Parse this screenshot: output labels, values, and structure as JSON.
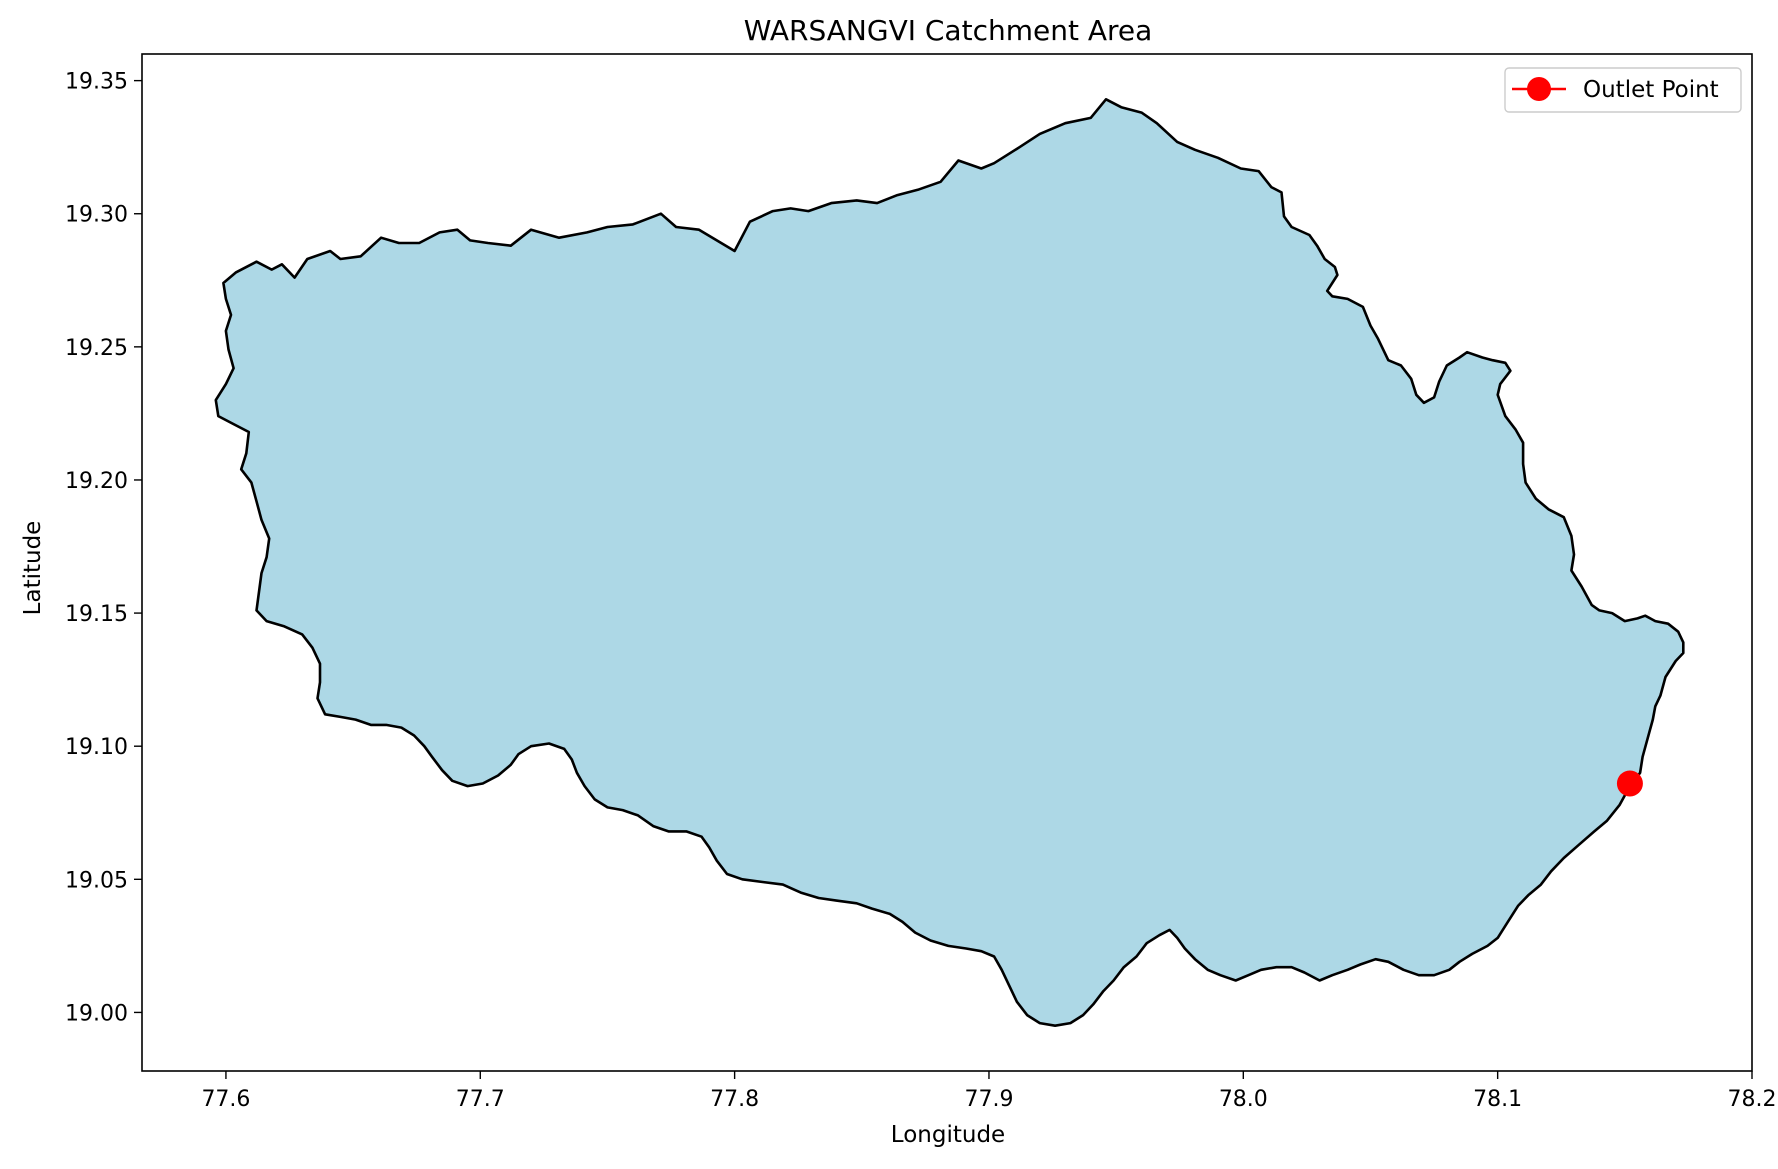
{
  "chart_data": {
    "type": "map",
    "title": "WARSANGVI Catchment Area",
    "xlabel": "Longitude",
    "ylabel": "Latitude",
    "xlim": [
      77.567,
      78.2
    ],
    "ylim": [
      18.978,
      19.36
    ],
    "x_ticks": [
      77.6,
      77.7,
      77.8,
      77.9,
      78.0,
      78.1,
      78.2
    ],
    "x_tick_labels": [
      "77.6",
      "77.7",
      "77.8",
      "77.9",
      "78.0",
      "78.1",
      "78.2"
    ],
    "y_ticks": [
      19.0,
      19.05,
      19.1,
      19.15,
      19.2,
      19.25,
      19.3,
      19.35
    ],
    "y_tick_labels": [
      "19.00",
      "19.05",
      "19.10",
      "19.15",
      "19.20",
      "19.25",
      "19.30",
      "19.35"
    ],
    "grid": false,
    "legend": {
      "placement": "top-right",
      "entries": [
        {
          "name": "Outlet Point",
          "marker": "circle",
          "color": "#ff0000"
        }
      ]
    },
    "catchment": {
      "fill_color": "#add8e6",
      "edge_color": "#000000",
      "boundary": [
        [
          77.599,
          19.274
        ],
        [
          77.604,
          19.278
        ],
        [
          77.612,
          19.282
        ],
        [
          77.618,
          19.279
        ],
        [
          77.622,
          19.281
        ],
        [
          77.627,
          19.276
        ],
        [
          77.632,
          19.283
        ],
        [
          77.641,
          19.286
        ],
        [
          77.645,
          19.283
        ],
        [
          77.653,
          19.284
        ],
        [
          77.661,
          19.291
        ],
        [
          77.668,
          19.289
        ],
        [
          77.676,
          19.289
        ],
        [
          77.684,
          19.293
        ],
        [
          77.691,
          19.294
        ],
        [
          77.696,
          19.29
        ],
        [
          77.703,
          19.289
        ],
        [
          77.712,
          19.288
        ],
        [
          77.72,
          19.294
        ],
        [
          77.731,
          19.291
        ],
        [
          77.742,
          19.293
        ],
        [
          77.75,
          19.295
        ],
        [
          77.76,
          19.296
        ],
        [
          77.771,
          19.3
        ],
        [
          77.777,
          19.295
        ],
        [
          77.786,
          19.294
        ],
        [
          77.793,
          19.29
        ],
        [
          77.8,
          19.286
        ],
        [
          77.806,
          19.297
        ],
        [
          77.815,
          19.301
        ],
        [
          77.822,
          19.302
        ],
        [
          77.829,
          19.301
        ],
        [
          77.838,
          19.304
        ],
        [
          77.848,
          19.305
        ],
        [
          77.856,
          19.304
        ],
        [
          77.864,
          19.307
        ],
        [
          77.872,
          19.309
        ],
        [
          77.881,
          19.312
        ],
        [
          77.888,
          19.32
        ],
        [
          77.897,
          19.317
        ],
        [
          77.902,
          19.319
        ],
        [
          77.912,
          19.325
        ],
        [
          77.92,
          19.33
        ],
        [
          77.93,
          19.334
        ],
        [
          77.94,
          19.336
        ],
        [
          77.946,
          19.343
        ],
        [
          77.952,
          19.34
        ],
        [
          77.96,
          19.338
        ],
        [
          77.966,
          19.334
        ],
        [
          77.974,
          19.327
        ],
        [
          77.981,
          19.324
        ],
        [
          77.99,
          19.321
        ],
        [
          77.999,
          19.317
        ],
        [
          78.006,
          19.316
        ],
        [
          78.011,
          19.31
        ],
        [
          78.015,
          19.308
        ],
        [
          78.016,
          19.299
        ],
        [
          78.019,
          19.295
        ],
        [
          78.026,
          19.292
        ],
        [
          78.029,
          19.288
        ],
        [
          78.032,
          19.283
        ],
        [
          78.036,
          19.28
        ],
        [
          78.037,
          19.277
        ],
        [
          78.033,
          19.271
        ],
        [
          78.035,
          19.269
        ],
        [
          78.041,
          19.268
        ],
        [
          78.047,
          19.265
        ],
        [
          78.05,
          19.258
        ],
        [
          78.053,
          19.253
        ],
        [
          78.057,
          19.245
        ],
        [
          78.062,
          19.243
        ],
        [
          78.066,
          19.238
        ],
        [
          78.068,
          19.232
        ],
        [
          78.071,
          19.229
        ],
        [
          78.075,
          19.231
        ],
        [
          78.077,
          19.237
        ],
        [
          78.08,
          19.243
        ],
        [
          78.085,
          19.246
        ],
        [
          78.088,
          19.248
        ],
        [
          78.094,
          19.246
        ],
        [
          78.098,
          19.245
        ],
        [
          78.103,
          19.244
        ],
        [
          78.105,
          19.241
        ],
        [
          78.101,
          19.236
        ],
        [
          78.1,
          19.232
        ],
        [
          78.103,
          19.224
        ],
        [
          78.107,
          19.219
        ],
        [
          78.11,
          19.214
        ],
        [
          78.11,
          19.206
        ],
        [
          78.111,
          19.199
        ],
        [
          78.115,
          19.193
        ],
        [
          78.12,
          19.189
        ],
        [
          78.126,
          19.186
        ],
        [
          78.129,
          19.179
        ],
        [
          78.13,
          19.172
        ],
        [
          78.129,
          19.166
        ],
        [
          78.133,
          19.16
        ],
        [
          78.137,
          19.153
        ],
        [
          78.14,
          19.151
        ],
        [
          78.145,
          19.15
        ],
        [
          78.15,
          19.147
        ],
        [
          78.155,
          19.148
        ],
        [
          78.158,
          19.149
        ],
        [
          78.162,
          19.147
        ],
        [
          78.167,
          19.146
        ],
        [
          78.171,
          19.143
        ],
        [
          78.173,
          19.139
        ],
        [
          78.173,
          19.135
        ],
        [
          78.17,
          19.132
        ],
        [
          78.166,
          19.126
        ],
        [
          78.164,
          19.119
        ],
        [
          78.162,
          19.115
        ],
        [
          78.161,
          19.11
        ],
        [
          78.159,
          19.103
        ],
        [
          78.157,
          19.096
        ],
        [
          78.156,
          19.09
        ],
        [
          78.152,
          19.085
        ],
        [
          78.148,
          19.078
        ],
        [
          78.143,
          19.072
        ],
        [
          78.138,
          19.068
        ],
        [
          78.132,
          19.063
        ],
        [
          78.126,
          19.058
        ],
        [
          78.121,
          19.053
        ],
        [
          78.117,
          19.048
        ],
        [
          78.112,
          19.044
        ],
        [
          78.108,
          19.04
        ],
        [
          78.104,
          19.034
        ],
        [
          78.1,
          19.028
        ],
        [
          78.096,
          19.025
        ],
        [
          78.09,
          19.022
        ],
        [
          78.085,
          19.019
        ],
        [
          78.081,
          19.016
        ],
        [
          78.075,
          19.014
        ],
        [
          78.069,
          19.014
        ],
        [
          78.063,
          19.016
        ],
        [
          78.057,
          19.019
        ],
        [
          78.052,
          19.02
        ],
        [
          78.046,
          19.018
        ],
        [
          78.041,
          19.016
        ],
        [
          78.035,
          19.014
        ],
        [
          78.03,
          19.012
        ],
        [
          78.024,
          19.015
        ],
        [
          78.019,
          19.017
        ],
        [
          78.013,
          19.017
        ],
        [
          78.007,
          19.016
        ],
        [
          78.002,
          19.014
        ],
        [
          77.997,
          19.012
        ],
        [
          77.991,
          19.014
        ],
        [
          77.986,
          19.016
        ],
        [
          77.981,
          19.02
        ],
        [
          77.977,
          19.024
        ],
        [
          77.974,
          19.028
        ],
        [
          77.971,
          19.031
        ],
        [
          77.967,
          19.029
        ],
        [
          77.962,
          19.026
        ],
        [
          77.958,
          19.021
        ],
        [
          77.953,
          19.017
        ],
        [
          77.949,
          19.012
        ],
        [
          77.945,
          19.008
        ],
        [
          77.941,
          19.003
        ],
        [
          77.937,
          18.999
        ],
        [
          77.932,
          18.996
        ],
        [
          77.926,
          18.995
        ],
        [
          77.92,
          18.996
        ],
        [
          77.915,
          18.999
        ],
        [
          77.911,
          19.004
        ],
        [
          77.908,
          19.01
        ],
        [
          77.905,
          19.016
        ],
        [
          77.902,
          19.021
        ],
        [
          77.897,
          19.023
        ],
        [
          77.891,
          19.024
        ],
        [
          77.884,
          19.025
        ],
        [
          77.877,
          19.027
        ],
        [
          77.871,
          19.03
        ],
        [
          77.866,
          19.034
        ],
        [
          77.861,
          19.037
        ],
        [
          77.854,
          19.039
        ],
        [
          77.848,
          19.041
        ],
        [
          77.84,
          19.042
        ],
        [
          77.833,
          19.043
        ],
        [
          77.826,
          19.045
        ],
        [
          77.819,
          19.048
        ],
        [
          77.811,
          19.049
        ],
        [
          77.803,
          19.05
        ],
        [
          77.797,
          19.052
        ],
        [
          77.793,
          19.057
        ],
        [
          77.79,
          19.062
        ],
        [
          77.787,
          19.066
        ],
        [
          77.781,
          19.068
        ],
        [
          77.774,
          19.068
        ],
        [
          77.768,
          19.07
        ],
        [
          77.762,
          19.074
        ],
        [
          77.756,
          19.076
        ],
        [
          77.75,
          19.077
        ],
        [
          77.745,
          19.08
        ],
        [
          77.741,
          19.085
        ],
        [
          77.738,
          19.09
        ],
        [
          77.736,
          19.095
        ],
        [
          77.733,
          19.099
        ],
        [
          77.727,
          19.101
        ],
        [
          77.72,
          19.1
        ],
        [
          77.715,
          19.097
        ],
        [
          77.712,
          19.093
        ],
        [
          77.707,
          19.089
        ],
        [
          77.701,
          19.086
        ],
        [
          77.695,
          19.085
        ],
        [
          77.689,
          19.087
        ],
        [
          77.685,
          19.091
        ],
        [
          77.681,
          19.096
        ],
        [
          77.678,
          19.1
        ],
        [
          77.674,
          19.104
        ],
        [
          77.669,
          19.107
        ],
        [
          77.663,
          19.108
        ],
        [
          77.657,
          19.108
        ],
        [
          77.651,
          19.11
        ],
        [
          77.645,
          19.111
        ],
        [
          77.639,
          19.112
        ],
        [
          77.636,
          19.118
        ],
        [
          77.637,
          19.124
        ],
        [
          77.637,
          19.131
        ],
        [
          77.634,
          19.137
        ],
        [
          77.63,
          19.142
        ],
        [
          77.623,
          19.145
        ],
        [
          77.616,
          19.147
        ],
        [
          77.612,
          19.151
        ],
        [
          77.613,
          19.158
        ],
        [
          77.614,
          19.165
        ],
        [
          77.616,
          19.171
        ],
        [
          77.617,
          19.178
        ],
        [
          77.614,
          19.185
        ],
        [
          77.612,
          19.192
        ],
        [
          77.61,
          19.199
        ],
        [
          77.606,
          19.204
        ],
        [
          77.608,
          19.21
        ],
        [
          77.609,
          19.218
        ],
        [
          77.603,
          19.221
        ],
        [
          77.597,
          19.224
        ],
        [
          77.596,
          19.23
        ],
        [
          77.6,
          19.236
        ],
        [
          77.603,
          19.242
        ],
        [
          77.601,
          19.249
        ],
        [
          77.6,
          19.256
        ],
        [
          77.602,
          19.262
        ],
        [
          77.6,
          19.268
        ],
        [
          77.599,
          19.274
        ]
      ]
    },
    "series": [
      {
        "name": "Outlet Point",
        "type": "scatter",
        "color": "#ff0000",
        "points": [
          [
            78.152,
            19.086
          ]
        ]
      }
    ]
  }
}
